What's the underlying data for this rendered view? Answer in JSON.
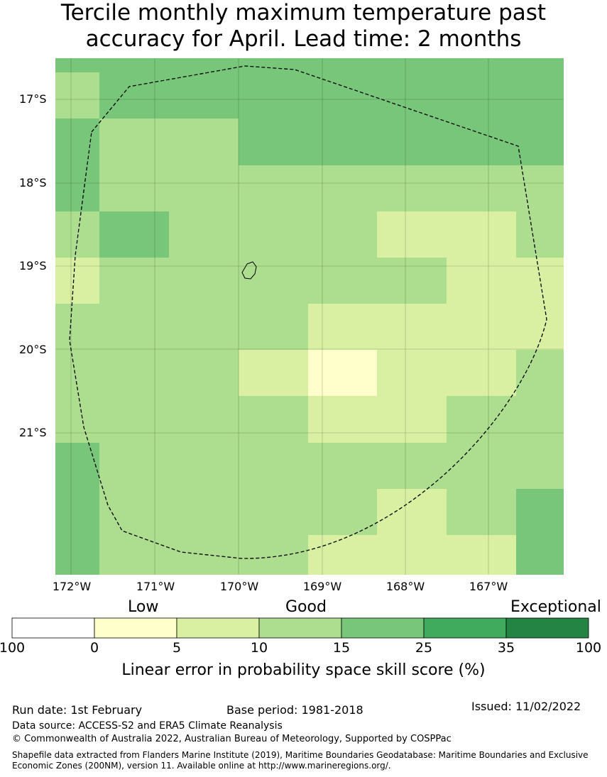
{
  "title": {
    "line1": "Tercile monthly maximum temperature past",
    "line2": "accuracy for April. Lead time: 2 months"
  },
  "map": {
    "lat_labels": [
      "17°S",
      "18°S",
      "19°S",
      "20°S",
      "21°S"
    ],
    "lon_labels": [
      "172°W",
      "171°W",
      "170°W",
      "169°W",
      "168°W",
      "167°W"
    ],
    "boundary_style": "dashed",
    "island_outline": "Niue"
  },
  "legend": {
    "categories": [
      "Low",
      "Good",
      "Exceptional"
    ],
    "ticks": [
      "100",
      "0",
      "5",
      "10",
      "15",
      "25",
      "35",
      "100"
    ],
    "bin_colors": [
      "#ffffff",
      "#ffffcc",
      "#d9f0a3",
      "#addd8e",
      "#78c679",
      "#41ab5d",
      "#238443"
    ],
    "title": "Linear error in probability space skill score (%)"
  },
  "footer": {
    "run_date": "Run date: 1st February",
    "base_period": "Base period: 1981-2018",
    "issued": "Issued: 11/02/2022",
    "data_source": "Data source: ACCESS-S2 and ERA5 Climate Reanalysis",
    "copyright": "© Commonwealth of Australia 2022, Australian Bureau of Meteorology, Supported by COSPPac",
    "shapefile": "Shapefile data extracted from Flanders Marine Institute (2019), Maritime Boundaries Geodatabase: Maritime Boundaries and Exclusive Economic Zones (200NM), version 11. Available online at http://www.marineregions.org/."
  }
}
